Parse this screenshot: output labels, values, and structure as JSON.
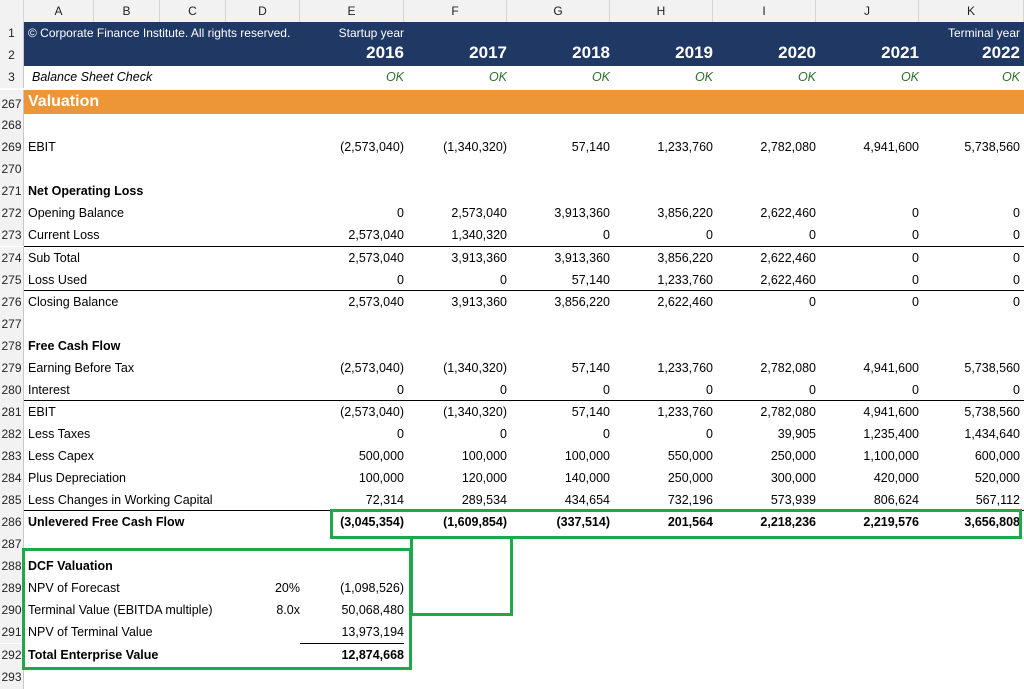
{
  "columns": [
    "A",
    "B",
    "C",
    "D",
    "E",
    "F",
    "G",
    "H",
    "I",
    "J",
    "K"
  ],
  "header": {
    "copyright": "© Corporate Finance Institute. All rights reserved.",
    "startup_label": "Startup year",
    "terminal_label": "Terminal year",
    "years": [
      "2016",
      "2017",
      "2018",
      "2019",
      "2020",
      "2021",
      "2022"
    ]
  },
  "check": {
    "label": "Balance Sheet Check",
    "values": [
      "OK",
      "OK",
      "OK",
      "OK",
      "OK",
      "OK",
      "OK"
    ]
  },
  "section_title": "Valuation",
  "rows": {
    "r267": "267",
    "r268": "268",
    "r269": "269",
    "r270": "270",
    "r271": "271",
    "r272": "272",
    "r273": "273",
    "r274": "274",
    "r275": "275",
    "r276": "276",
    "r277": "277",
    "r278": "278",
    "r279": "279",
    "r280": "280",
    "r281": "281",
    "r282": "282",
    "r283": "283",
    "r284": "284",
    "r285": "285",
    "r286": "286",
    "r287": "287",
    "r288": "288",
    "r289": "289",
    "r290": "290",
    "r291": "291",
    "r292": "292",
    "r293": "293"
  },
  "ebit": {
    "label": "EBIT",
    "values": [
      "(2,573,040)",
      "(1,340,320)",
      "57,140",
      "1,233,760",
      "2,782,080",
      "4,941,600",
      "5,738,560"
    ]
  },
  "nol": {
    "title": "Net Operating Loss",
    "opening": {
      "label": "Opening Balance",
      "values": [
        "0",
        "2,573,040",
        "3,913,360",
        "3,856,220",
        "2,622,460",
        "0",
        "0"
      ]
    },
    "current": {
      "label": "Current Loss",
      "values": [
        "2,573,040",
        "1,340,320",
        "0",
        "0",
        "0",
        "0",
        "0"
      ]
    },
    "subtotal": {
      "label": "Sub Total",
      "values": [
        "2,573,040",
        "3,913,360",
        "3,913,360",
        "3,856,220",
        "2,622,460",
        "0",
        "0"
      ]
    },
    "used": {
      "label": "Loss Used",
      "values": [
        "0",
        "0",
        "57,140",
        "1,233,760",
        "2,622,460",
        "0",
        "0"
      ]
    },
    "closing": {
      "label": "Closing Balance",
      "values": [
        "2,573,040",
        "3,913,360",
        "3,856,220",
        "2,622,460",
        "0",
        "0",
        "0"
      ]
    }
  },
  "fcf": {
    "title": "Free Cash Flow",
    "ebt": {
      "label": "Earning Before Tax",
      "values": [
        "(2,573,040)",
        "(1,340,320)",
        "57,140",
        "1,233,760",
        "2,782,080",
        "4,941,600",
        "5,738,560"
      ]
    },
    "interest": {
      "label": "Interest",
      "values": [
        "0",
        "0",
        "0",
        "0",
        "0",
        "0",
        "0"
      ]
    },
    "ebit": {
      "label": "EBIT",
      "values": [
        "(2,573,040)",
        "(1,340,320)",
        "57,140",
        "1,233,760",
        "2,782,080",
        "4,941,600",
        "5,738,560"
      ]
    },
    "taxes": {
      "label": "Less Taxes",
      "values": [
        "0",
        "0",
        "0",
        "0",
        "39,905",
        "1,235,400",
        "1,434,640"
      ]
    },
    "capex": {
      "label": "Less Capex",
      "values": [
        "500,000",
        "100,000",
        "100,000",
        "550,000",
        "250,000",
        "1,100,000",
        "600,000"
      ]
    },
    "dep": {
      "label": "Plus Depreciation",
      "values": [
        "100,000",
        "120,000",
        "140,000",
        "250,000",
        "300,000",
        "420,000",
        "520,000"
      ]
    },
    "wc": {
      "label": "Less Changes in Working Capital",
      "values": [
        "72,314",
        "289,534",
        "434,654",
        "732,196",
        "573,939",
        "806,624",
        "567,112"
      ]
    },
    "ufcf": {
      "label": "Unlevered Free Cash Flow",
      "values": [
        "(3,045,354)",
        "(1,609,854)",
        "(337,514)",
        "201,564",
        "2,218,236",
        "2,219,576",
        "3,656,808"
      ]
    }
  },
  "dcf": {
    "title": "DCF Valuation",
    "npv_forecast": {
      "label": "NPV of Forecast",
      "param": "20%",
      "value": "(1,098,526)"
    },
    "terminal": {
      "label": "Terminal Value (EBITDA multiple)",
      "param": "8.0x",
      "value": "50,068,480"
    },
    "npv_terminal": {
      "label": "NPV of Terminal Value",
      "value": "13,973,194"
    },
    "tev": {
      "label": "Total Enterprise Value",
      "value": "12,874,668"
    }
  },
  "colors": {
    "header_bg": "#1f3864",
    "section_bg": "#ed9637",
    "highlight": "#1fa84a",
    "ok_text": "#2f6f2f"
  }
}
